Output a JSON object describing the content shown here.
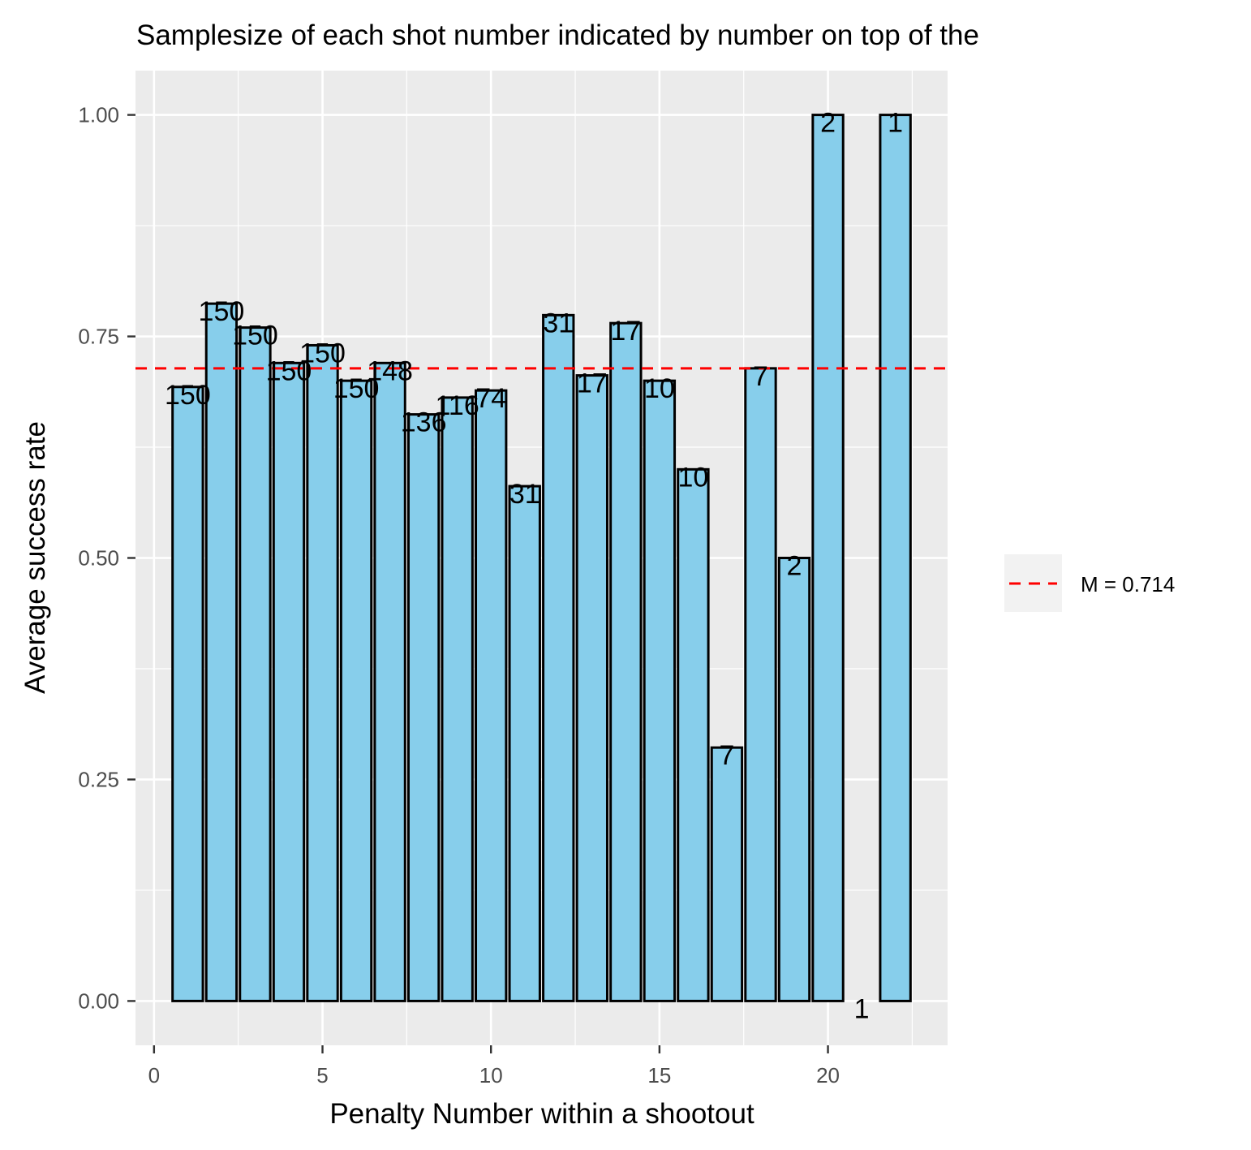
{
  "chart_data": {
    "type": "bar",
    "title": "Samplesize of each shot number indicated by number on top of the",
    "xlabel": "Penalty Number within a shootout",
    "ylabel": "Average success rate",
    "x": [
      1,
      2,
      3,
      4,
      5,
      6,
      7,
      8,
      9,
      10,
      11,
      12,
      13,
      14,
      15,
      16,
      17,
      18,
      19,
      20,
      21,
      22
    ],
    "values": [
      0.693,
      0.787,
      0.76,
      0.72,
      0.74,
      0.7,
      0.72,
      0.662,
      0.681,
      0.689,
      0.581,
      0.774,
      0.706,
      0.765,
      0.7,
      0.6,
      0.286,
      0.714,
      0.5,
      1.0,
      0.0,
      1.0
    ],
    "sample_sizes": [
      "150",
      "150",
      "150",
      "150",
      "150",
      "150",
      "148",
      "136",
      "116",
      "74",
      "31",
      "31",
      "17",
      "17",
      "10",
      "10",
      "7",
      "7",
      "2",
      "2",
      "1",
      "1"
    ],
    "x_ticks": [
      0,
      5,
      10,
      15,
      20
    ],
    "x_tick_labels": [
      "0",
      "5",
      "10",
      "15",
      "20"
    ],
    "y_ticks": [
      0,
      0.25,
      0.5,
      0.75,
      1
    ],
    "y_tick_labels": [
      "0.00",
      "0.25",
      "0.50",
      "0.75",
      "1.00"
    ],
    "xlim": [
      -0.55,
      23.55
    ],
    "ylim": [
      -0.05,
      1.05
    ],
    "bar_fill": "#87ceeb",
    "bar_outline": "#000000",
    "panel_background": "#ebebeb",
    "grid": true,
    "reference_line": {
      "value": 0.714,
      "color": "#ff0000",
      "style": "dashed",
      "label": "M = 0.714"
    },
    "legend": {
      "position": "right",
      "entries": [
        "M = 0.714"
      ]
    }
  }
}
